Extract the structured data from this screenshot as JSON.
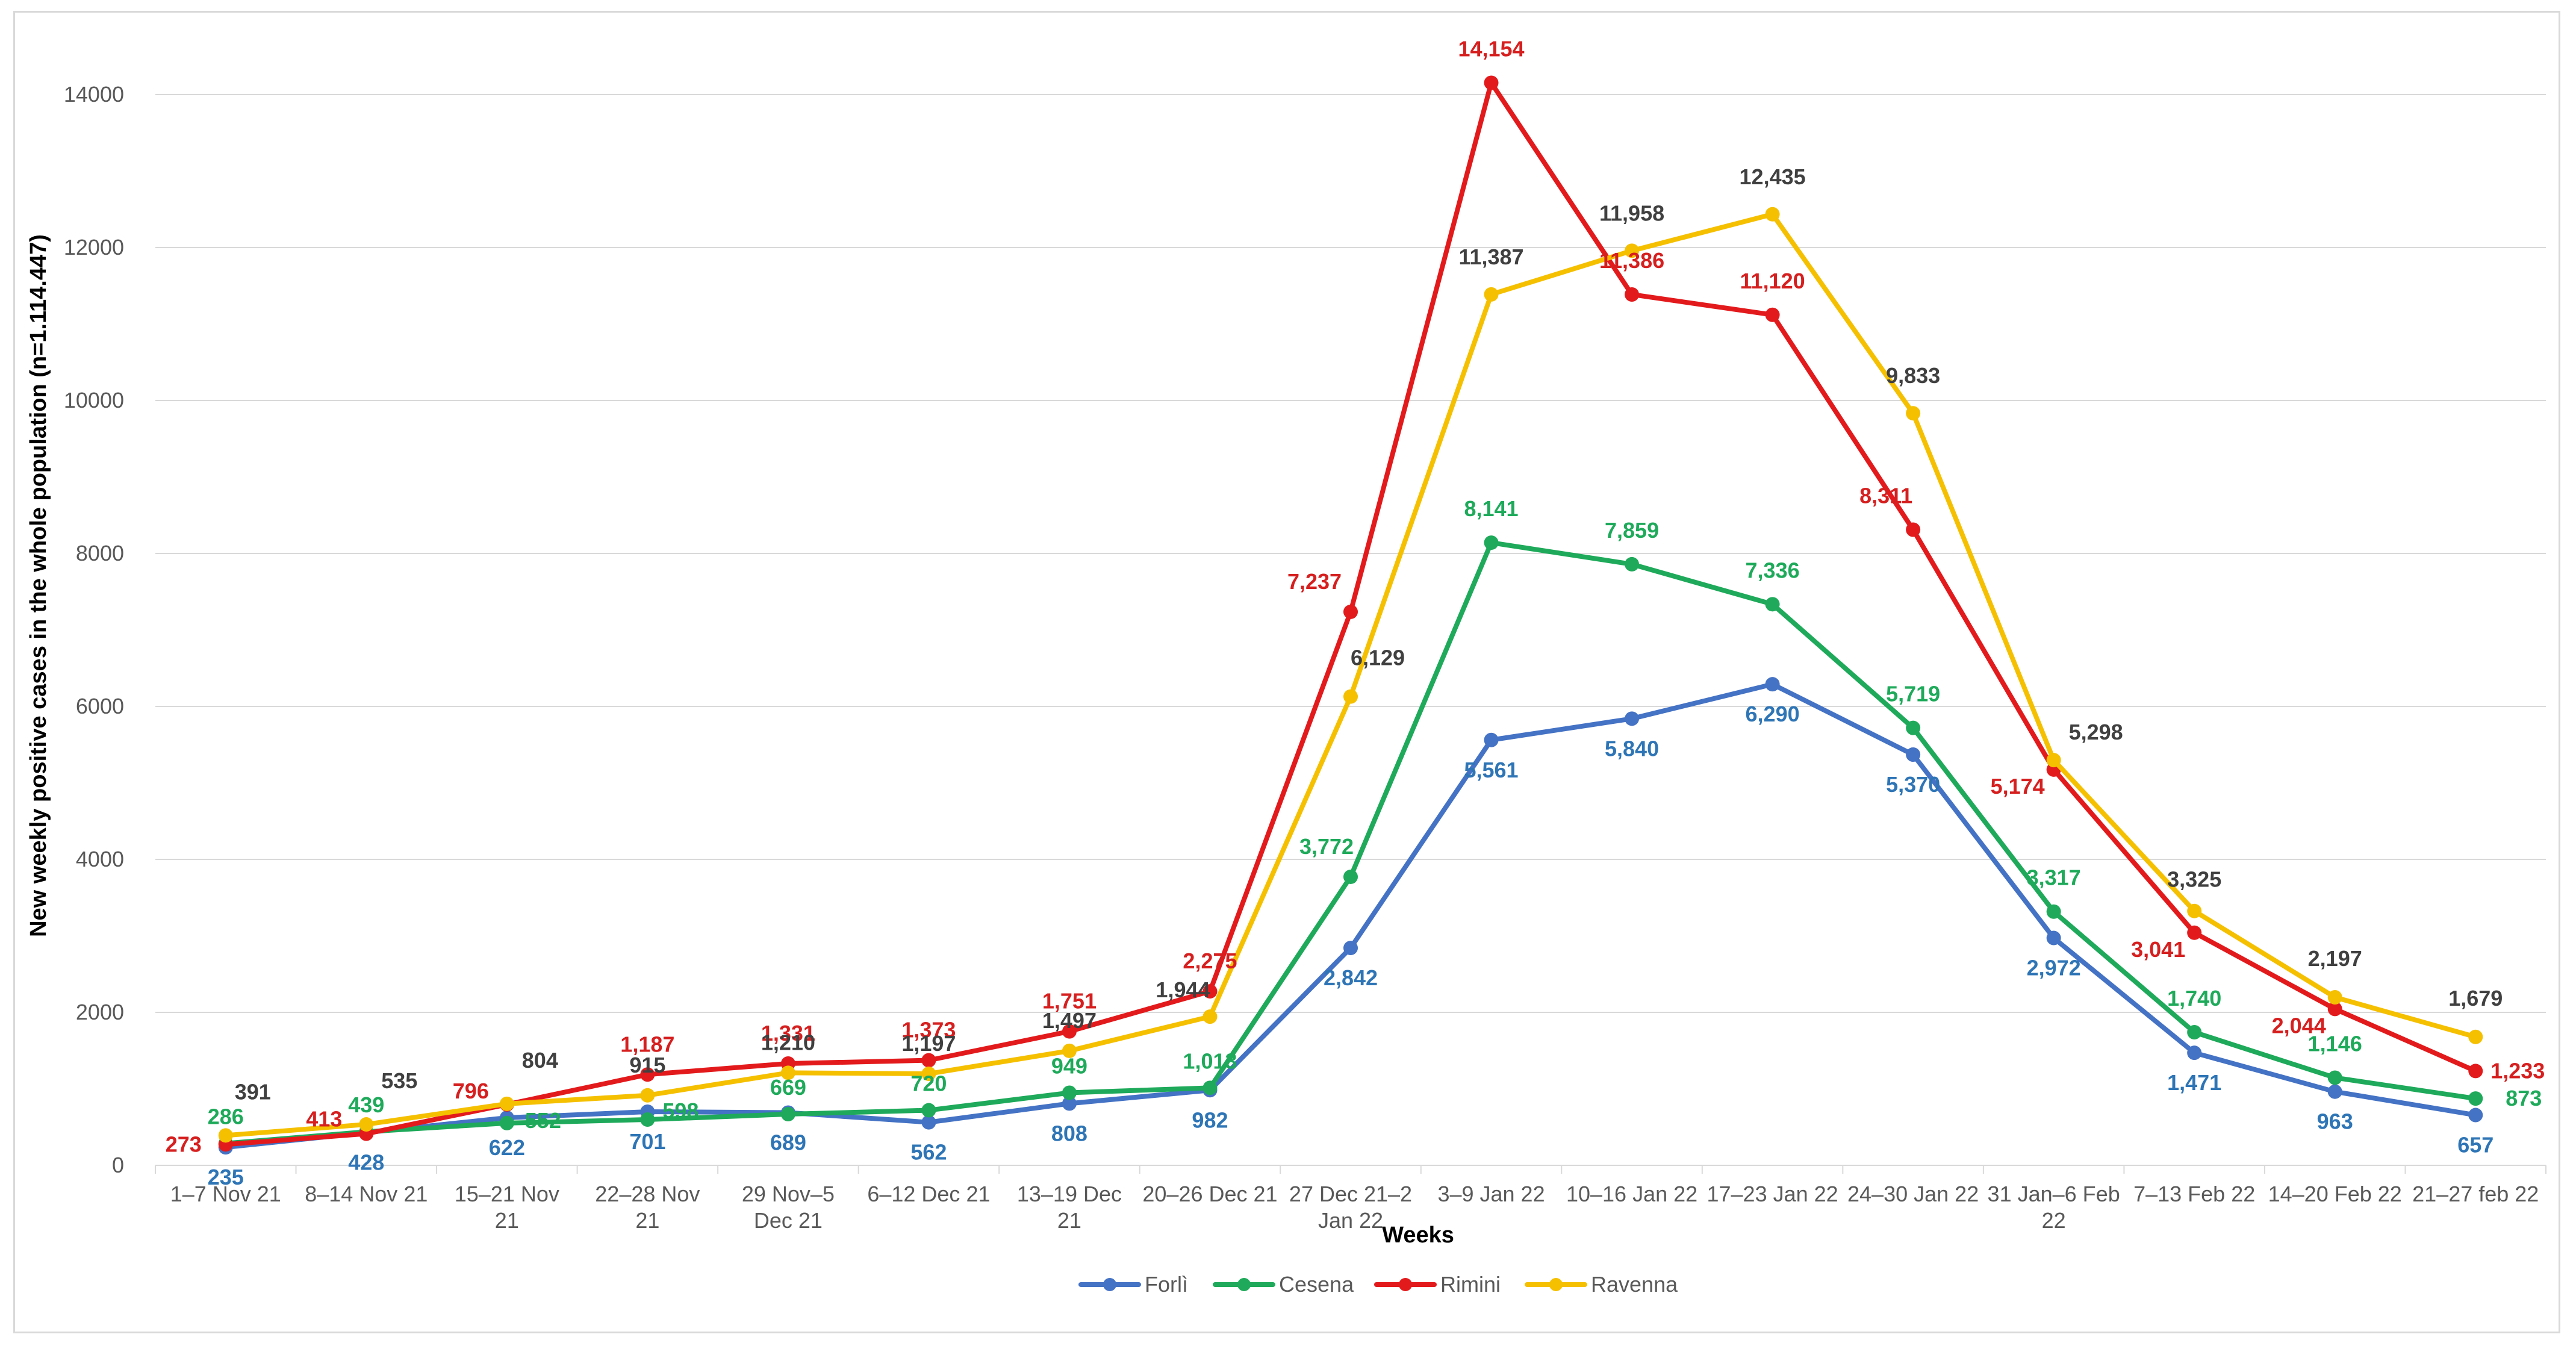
{
  "chart_data": {
    "type": "line",
    "title": "",
    "xlabel": "Weeks",
    "ylabel": "New weekly positive cases in the whole population (n=1.114.447)",
    "ylim": [
      0,
      15000
    ],
    "yticks": [
      "0",
      "2000",
      "4000",
      "6000",
      "8000",
      "10000",
      "12000",
      "14000"
    ],
    "grid": true,
    "legend_position": "bottom",
    "categories": [
      [
        "1–7 Nov 21"
      ],
      [
        "8–14 Nov 21"
      ],
      [
        "15–21 Nov",
        "21"
      ],
      [
        "22–28 Nov",
        "21"
      ],
      [
        "29 Nov–5",
        "Dec 21"
      ],
      [
        "6–12 Dec 21"
      ],
      [
        "13–19  Dec",
        "21"
      ],
      [
        "20–26 Dec 21"
      ],
      [
        "27 Dec 21–2",
        "Jan 22"
      ],
      [
        "3–9 Jan 22"
      ],
      [
        "10–16 Jan 22"
      ],
      [
        "17–23 Jan 22"
      ],
      [
        "24–30 Jan 22"
      ],
      [
        "31 Jan–6 Feb",
        "22"
      ],
      [
        "7–13 Feb 22"
      ],
      [
        "14–20 Feb 22"
      ],
      [
        "21–27 feb 22"
      ]
    ],
    "series": [
      {
        "name": "Forlì",
        "color": "#4472c4",
        "label_color": "#2e75b6",
        "values": [
          235,
          428,
          622,
          701,
          689,
          562,
          808,
          982,
          2842,
          5561,
          5840,
          6290,
          5370,
          2972,
          1471,
          963,
          657
        ],
        "labels": [
          "235",
          "428",
          "622",
          "701",
          "689",
          "562",
          "808",
          "982",
          "2,842",
          "5,561",
          "5,840",
          "6,290",
          "5,370",
          "2,972",
          "1,471",
          "963",
          "657"
        ]
      },
      {
        "name": "Cesena",
        "color": "#1eaa5a",
        "label_color": "#1eaa5a",
        "values": [
          286,
          439,
          552,
          598,
          669,
          720,
          949,
          1013,
          3772,
          8141,
          7859,
          7336,
          5719,
          3317,
          1740,
          1146,
          873
        ],
        "labels": [
          "286",
          "439",
          "552",
          "598",
          "669",
          "720",
          "949",
          "1,013",
          "3,772",
          "8,141",
          "7,859",
          "7,336",
          "5,719",
          "3,317",
          "1,740",
          "1,146",
          "873"
        ]
      },
      {
        "name": "Rimini",
        "color": "#e31a1c",
        "label_color": "#d61f1f",
        "values": [
          273,
          413,
          796,
          1187,
          1331,
          1373,
          1751,
          2275,
          7237,
          14154,
          11386,
          11120,
          8311,
          5174,
          3041,
          2044,
          1233
        ],
        "labels": [
          "273",
          "413",
          "796",
          "1,187",
          "1,331",
          "1,373",
          "1,751",
          "2,275",
          "7,237",
          "14,154",
          "11,386",
          "11,120",
          "8,311",
          "5,174",
          "3,041",
          "2,044",
          "1,233"
        ]
      },
      {
        "name": "Ravenna",
        "color": "#f5c000",
        "label_color": "#404040",
        "values": [
          391,
          535,
          804,
          915,
          1210,
          1197,
          1497,
          1944,
          6129,
          11387,
          11958,
          12435,
          9833,
          5298,
          3325,
          2197,
          1679
        ],
        "labels": [
          "391",
          "535",
          "804",
          "915",
          "1,210",
          "1,197",
          "1,497",
          "1,944",
          "6,129",
          "11,387",
          "11,958",
          "12,435",
          "9,833",
          "5,298",
          "3,325",
          "2,197",
          "1,679"
        ]
      }
    ]
  }
}
